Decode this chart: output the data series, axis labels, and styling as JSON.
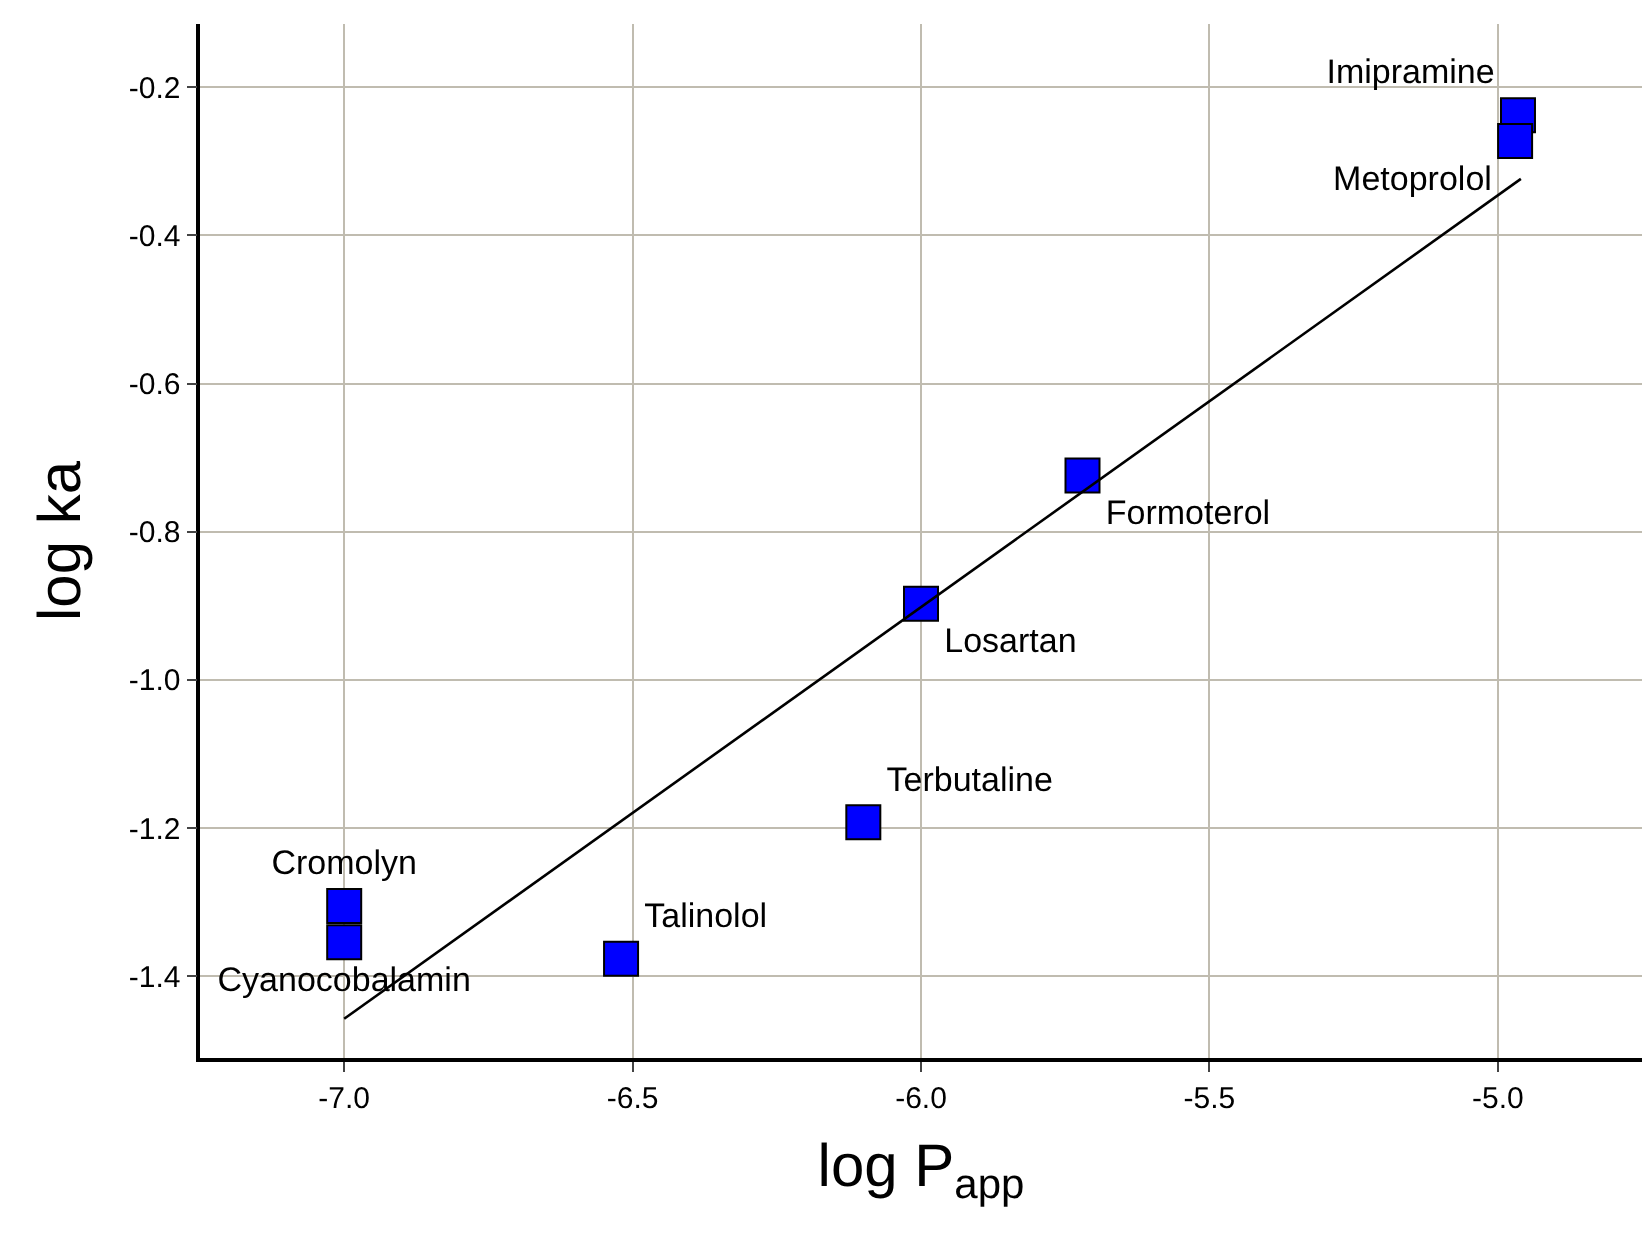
{
  "chart_data": {
    "type": "scatter",
    "xlabel": "log P$_{app}$",
    "ylabel": "log ka",
    "xlim": [
      -7.25,
      -4.75
    ],
    "xticks": [
      {
        "value": -7.0,
        "label": "-7.0"
      },
      {
        "value": -6.5,
        "label": "-6.5"
      },
      {
        "value": -6.0,
        "label": "-6.0"
      },
      {
        "value": -5.5,
        "label": "-5.5"
      },
      {
        "value": -5.0,
        "label": "-5.0"
      }
    ],
    "ylim": [
      -1.51,
      -0.115
    ],
    "yticks": [
      {
        "value": -1.4,
        "label": "-1.4"
      },
      {
        "value": -1.2,
        "label": "-1.2"
      },
      {
        "value": -1.0,
        "label": "-1.0"
      },
      {
        "value": -0.8,
        "label": "-0.8"
      },
      {
        "value": -0.6,
        "label": "-0.6"
      },
      {
        "value": -0.4,
        "label": "-0.4"
      },
      {
        "value": -0.2,
        "label": "-0.2"
      }
    ],
    "grid": true,
    "series": [
      {
        "marker": "square",
        "color": "#0000ff",
        "x": [
          -7.0,
          -7.0,
          -6.52,
          -6.1,
          -6.0,
          -5.72,
          -4.965,
          -4.97
        ],
        "values": [
          -1.305,
          -1.354,
          -1.376,
          -1.192,
          -0.897,
          -0.724,
          -0.238,
          -0.273
        ],
        "value_labels": [
          "Cromolyn",
          "Cyanocobalamin",
          "Talinolol",
          "Terbutaline",
          "Losartan",
          "Formoterol",
          "Imipramine",
          "Metoprolol"
        ]
      },
      {
        "type": "line",
        "color": "#000000",
        "x": [
          -7.0,
          -4.96
        ],
        "values": [
          -1.457,
          -0.324
        ]
      }
    ]
  }
}
